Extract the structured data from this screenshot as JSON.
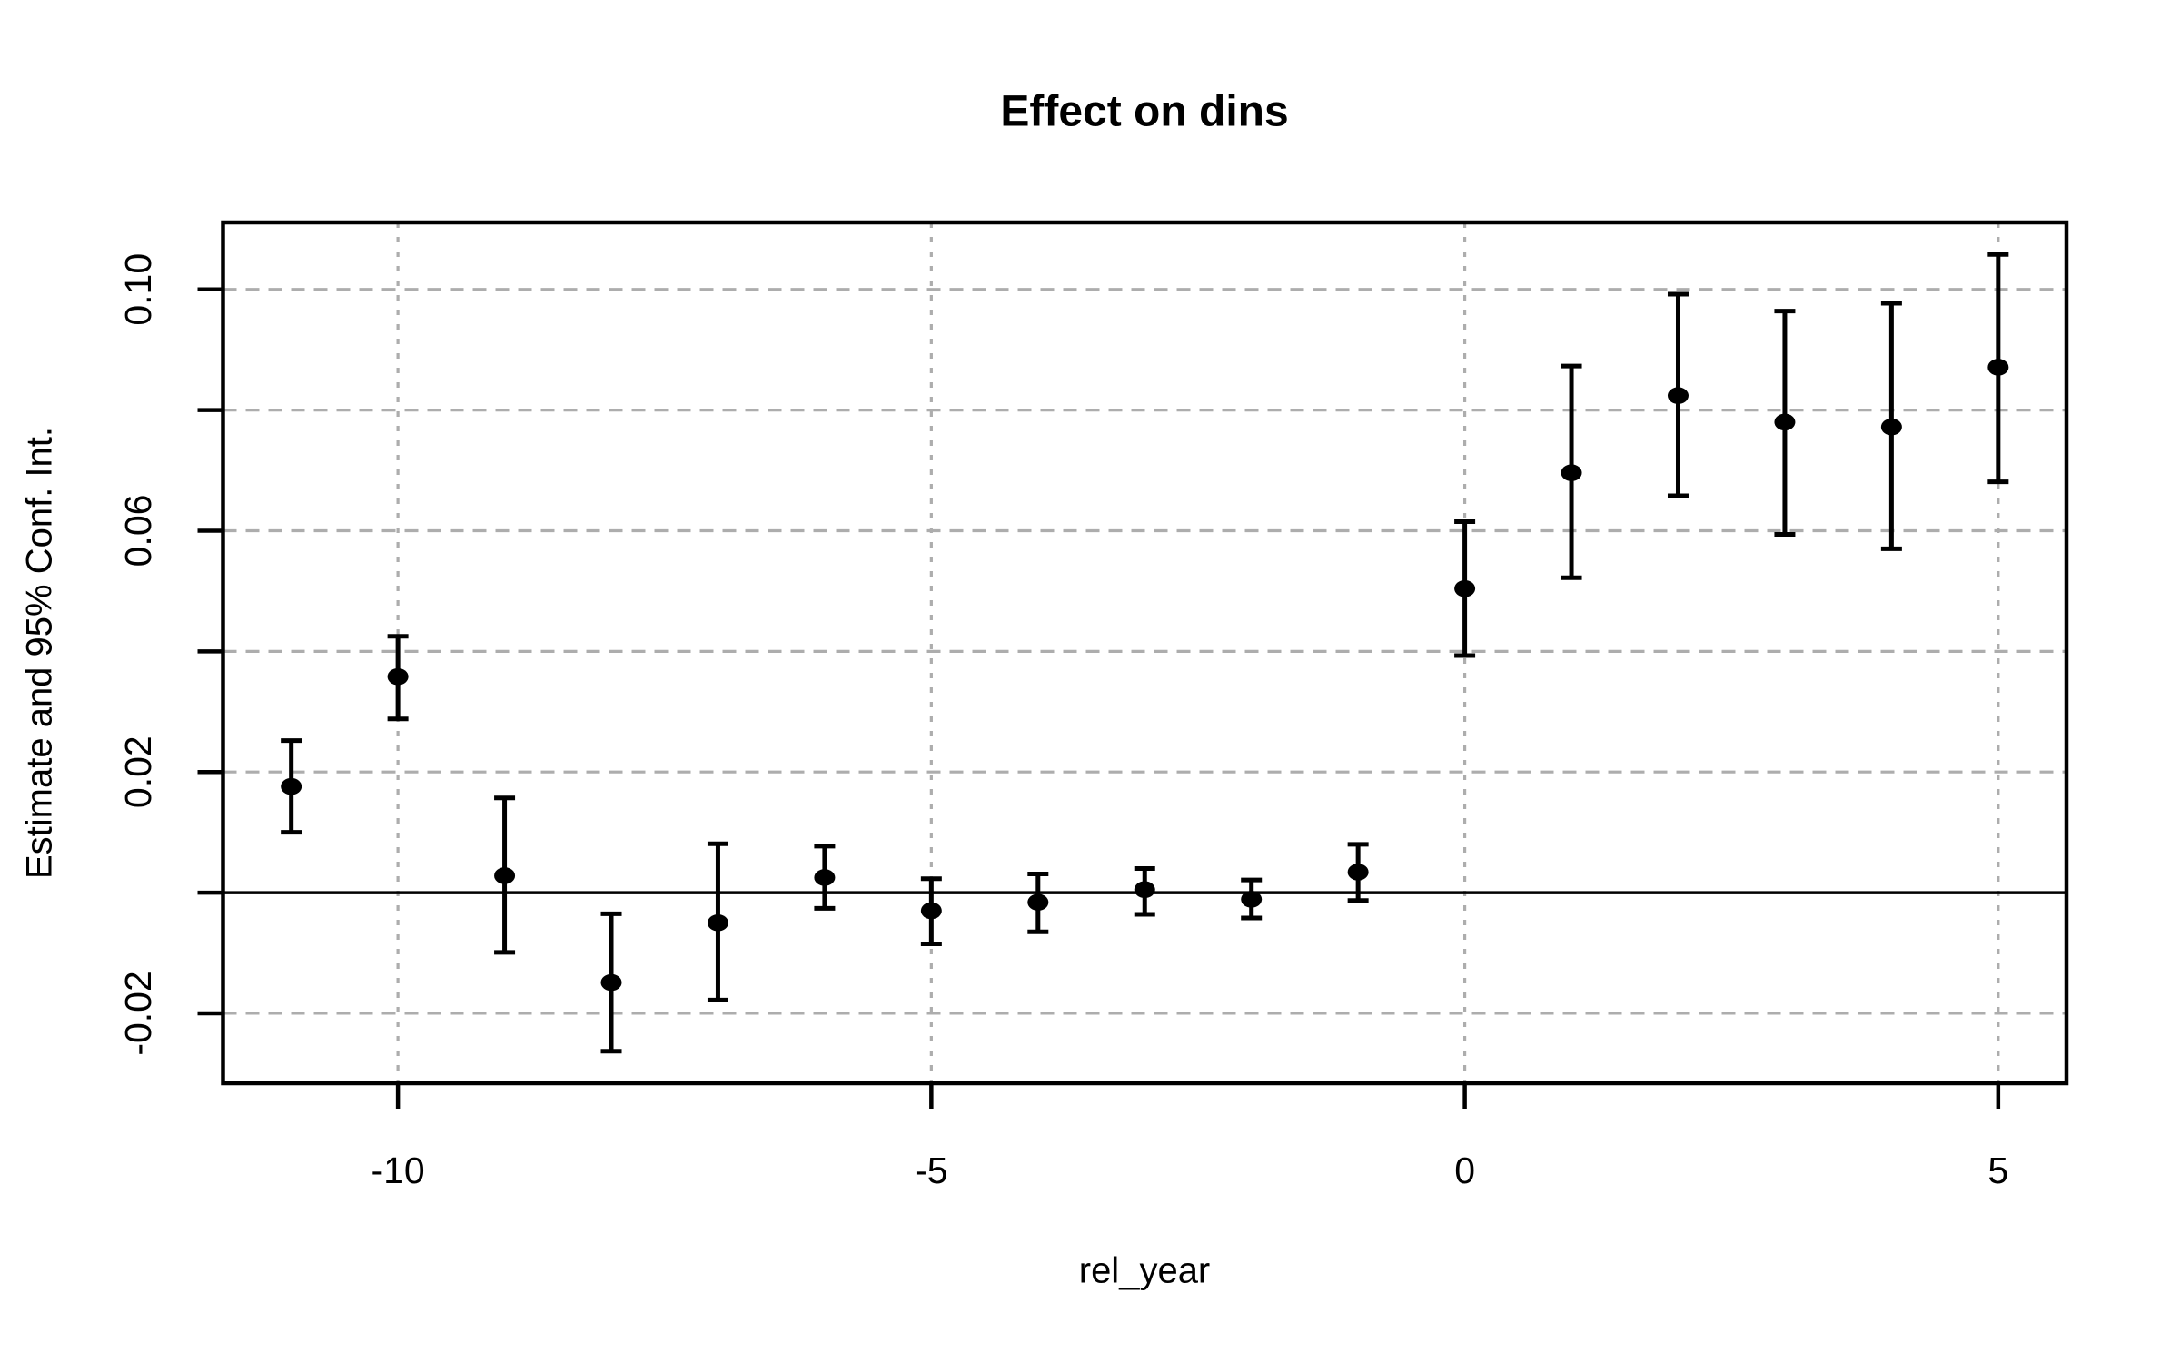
{
  "title": "Effect on dins",
  "colors": {
    "foreground": "#000000",
    "background": "#ffffff",
    "gridline": "#adadad"
  },
  "chart_data": {
    "type": "scatter",
    "subtype": "point-estimates-with-95ci-errorbars",
    "title": "Effect on dins",
    "xlabel": "rel_year",
    "ylabel": "Estimate and 95% Conf. Int.",
    "xlim": [
      -11.64,
      5.64
    ],
    "ylim": [
      -0.0316,
      0.1111
    ],
    "zero_line_y": 0,
    "grid": {
      "x_values": [
        -10,
        -5,
        0,
        5
      ],
      "y_values": [
        0.1,
        0.08,
        0.06,
        0.04,
        0.02,
        -0.02
      ],
      "color": "#adadad",
      "style": "dashed"
    },
    "x_ticks": [
      {
        "value": -10,
        "label": "-10"
      },
      {
        "value": -5,
        "label": "-5"
      },
      {
        "value": 0,
        "label": "0"
      },
      {
        "value": 5,
        "label": "5"
      }
    ],
    "y_ticks": [
      {
        "value": 0.1,
        "label": "0.10"
      },
      {
        "value": 0.08,
        "label": ""
      },
      {
        "value": 0.06,
        "label": "0.06"
      },
      {
        "value": 0.04,
        "label": ""
      },
      {
        "value": 0.02,
        "label": "0.02"
      },
      {
        "value": 0.0,
        "label": ""
      },
      {
        "value": -0.02,
        "label": "-0.02"
      }
    ],
    "series": [
      {
        "name": "estimate",
        "points": [
          {
            "x": -11,
            "y": 0.0176,
            "lo": 0.01,
            "hi": 0.0252
          },
          {
            "x": -10,
            "y": 0.0358,
            "lo": 0.0288,
            "hi": 0.0425
          },
          {
            "x": -9,
            "y": 0.0028,
            "lo": -0.0099,
            "hi": 0.0157
          },
          {
            "x": -8,
            "y": -0.0149,
            "lo": -0.0263,
            "hi": -0.0035
          },
          {
            "x": -7,
            "y": -0.005,
            "lo": -0.0178,
            "hi": 0.0081
          },
          {
            "x": -6,
            "y": 0.0025,
            "lo": -0.0026,
            "hi": 0.0077
          },
          {
            "x": -5,
            "y": -0.003,
            "lo": -0.0085,
            "hi": 0.0023
          },
          {
            "x": -4,
            "y": -0.0016,
            "lo": -0.0065,
            "hi": 0.0031
          },
          {
            "x": -3,
            "y": 0.0005,
            "lo": -0.0036,
            "hi": 0.004
          },
          {
            "x": -2,
            "y": -0.0011,
            "lo": -0.0042,
            "hi": 0.0021
          },
          {
            "x": -1,
            "y": 0.0034,
            "lo": -0.0013,
            "hi": 0.008
          },
          {
            "x": 0,
            "y": 0.0504,
            "lo": 0.0393,
            "hi": 0.0615
          },
          {
            "x": 1,
            "y": 0.0696,
            "lo": 0.0522,
            "hi": 0.0873
          },
          {
            "x": 2,
            "y": 0.0824,
            "lo": 0.0658,
            "hi": 0.0992
          },
          {
            "x": 3,
            "y": 0.078,
            "lo": 0.0594,
            "hi": 0.0964
          },
          {
            "x": 4,
            "y": 0.0772,
            "lo": 0.057,
            "hi": 0.0977
          },
          {
            "x": 5,
            "y": 0.0871,
            "lo": 0.0681,
            "hi": 0.1058
          }
        ]
      }
    ]
  }
}
